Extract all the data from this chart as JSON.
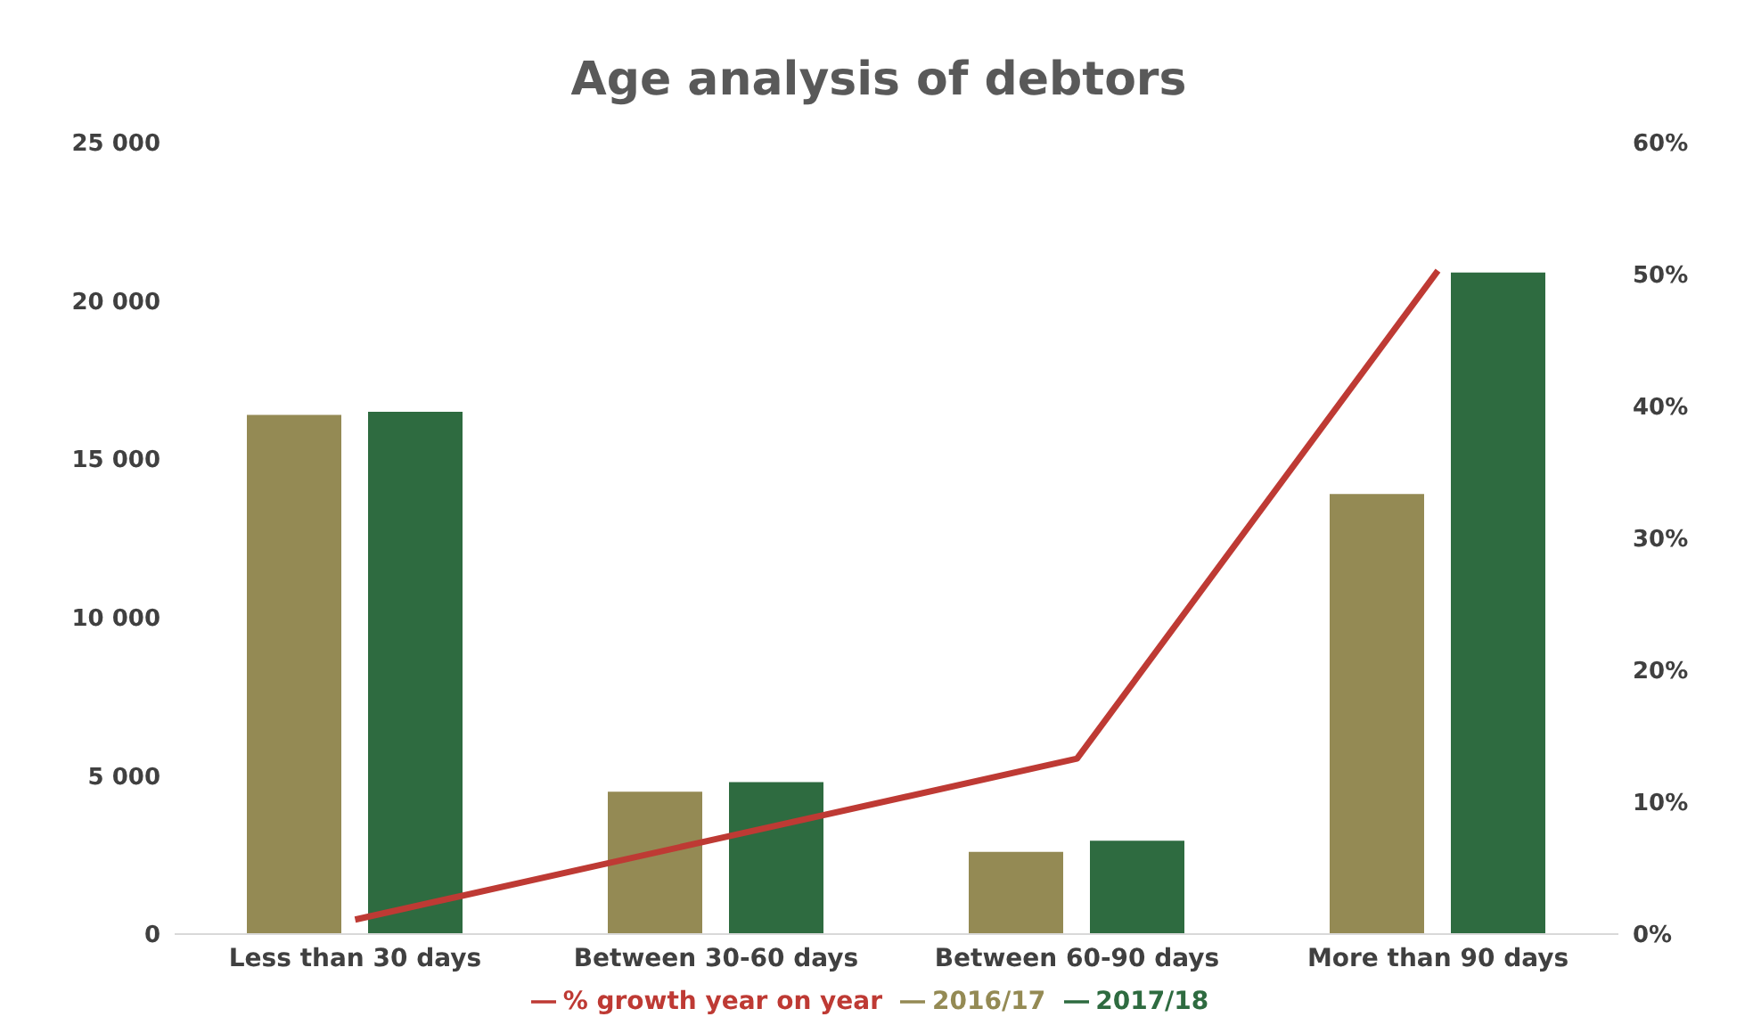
{
  "chart_data": {
    "type": "bar",
    "title": "Age analysis of debtors",
    "categories": [
      "Less than 30 days",
      "Between 30-60 days",
      "Between 60-90 days",
      "More than 90 days"
    ],
    "series": [
      {
        "name": "2016/17",
        "color": "#948a54",
        "values": [
          16400,
          4500,
          2600,
          13900
        ]
      },
      {
        "name": "2017/18",
        "color": "#2e6b40",
        "values": [
          16500,
          4800,
          2950,
          20900
        ]
      },
      {
        "name": "% growth year on year",
        "type": "line",
        "axis": "y2",
        "color": "#be3a34",
        "values": [
          1.1,
          7.2,
          13.3,
          50.3
        ]
      }
    ],
    "ylim": [
      0,
      25000
    ],
    "yticks": [
      {
        "value": 0,
        "label": "0"
      },
      {
        "value": 5000,
        "label": "5 000"
      },
      {
        "value": 10000,
        "label": "10 000"
      },
      {
        "value": 15000,
        "label": "15 000"
      },
      {
        "value": 20000,
        "label": "20 000"
      },
      {
        "value": 25000,
        "label": "25 000"
      }
    ],
    "y2lim": [
      0,
      60
    ],
    "y2ticks": [
      {
        "value": 0,
        "label": "0%"
      },
      {
        "value": 10,
        "label": "10%"
      },
      {
        "value": 20,
        "label": "20%"
      },
      {
        "value": 30,
        "label": "30%"
      },
      {
        "value": 40,
        "label": "40%"
      },
      {
        "value": 50,
        "label": "50%"
      },
      {
        "value": 60,
        "label": "60%"
      }
    ],
    "grid": false,
    "legend": "bottom",
    "marker": "none"
  }
}
